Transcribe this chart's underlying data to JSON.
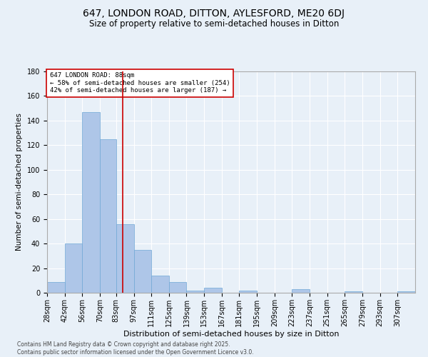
{
  "title1": "647, LONDON ROAD, DITTON, AYLESFORD, ME20 6DJ",
  "title2": "Size of property relative to semi-detached houses in Ditton",
  "xlabel": "Distribution of semi-detached houses by size in Ditton",
  "ylabel": "Number of semi-detached properties",
  "bins": [
    "28sqm",
    "42sqm",
    "56sqm",
    "70sqm",
    "83sqm",
    "97sqm",
    "111sqm",
    "125sqm",
    "139sqm",
    "153sqm",
    "167sqm",
    "181sqm",
    "195sqm",
    "209sqm",
    "223sqm",
    "237sqm",
    "251sqm",
    "265sqm",
    "279sqm",
    "293sqm",
    "307sqm"
  ],
  "bin_edges": [
    28,
    42,
    56,
    70,
    83,
    97,
    111,
    125,
    139,
    153,
    167,
    181,
    195,
    209,
    223,
    237,
    251,
    265,
    279,
    293,
    307
  ],
  "values": [
    9,
    40,
    147,
    125,
    56,
    35,
    14,
    9,
    2,
    4,
    0,
    2,
    0,
    0,
    3,
    0,
    0,
    1,
    0,
    0,
    1
  ],
  "bar_color": "#AEC6E8",
  "bar_edge_color": "#6FA8D6",
  "bg_color": "#E8F0F8",
  "grid_color": "#FFFFFF",
  "vline_x": 88,
  "vline_color": "#CC0000",
  "annotation_text": "647 LONDON ROAD: 88sqm\n← 58% of semi-detached houses are smaller (254)\n42% of semi-detached houses are larger (187) →",
  "annotation_box_color": "#FFFFFF",
  "annotation_box_edge": "#CC0000",
  "ylim": [
    0,
    180
  ],
  "yticks": [
    0,
    20,
    40,
    60,
    80,
    100,
    120,
    140,
    160,
    180
  ],
  "footer": "Contains HM Land Registry data © Crown copyright and database right 2025.\nContains public sector information licensed under the Open Government Licence v3.0.",
  "title1_fontsize": 10,
  "title2_fontsize": 8.5,
  "xlabel_fontsize": 8,
  "ylabel_fontsize": 7.5,
  "tick_fontsize": 7,
  "annotation_fontsize": 6.5,
  "footer_fontsize": 5.5
}
